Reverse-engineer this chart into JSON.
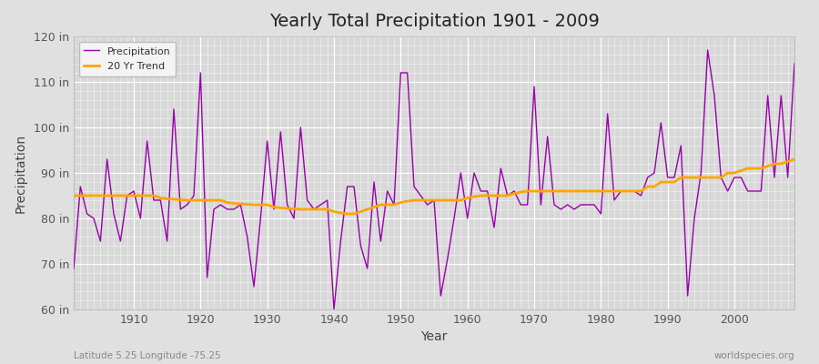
{
  "title": "Yearly Total Precipitation 1901 - 2009",
  "xlabel": "Year",
  "ylabel": "Precipitation",
  "subtitle_left": "Latitude 5.25 Longitude -75.25",
  "subtitle_right": "worldspecies.org",
  "ylim": [
    60,
    120
  ],
  "yticks": [
    60,
    70,
    80,
    90,
    100,
    110,
    120
  ],
  "ytick_labels": [
    "60 in",
    "70 in",
    "80 in",
    "90 in",
    "100 in",
    "110 in",
    "120 in"
  ],
  "xlim": [
    1901,
    2009
  ],
  "xticks": [
    1910,
    1920,
    1930,
    1940,
    1950,
    1960,
    1970,
    1980,
    1990,
    2000
  ],
  "precip_color": "#9900AA",
  "trend_color": "#FFA500",
  "bg_color": "#e0e0e0",
  "plot_bg_color": "#d8d8d8",
  "legend_bg": "#f5f5f5",
  "years": [
    1901,
    1902,
    1903,
    1904,
    1905,
    1906,
    1907,
    1908,
    1909,
    1910,
    1911,
    1912,
    1913,
    1914,
    1915,
    1916,
    1917,
    1918,
    1919,
    1920,
    1921,
    1922,
    1923,
    1924,
    1925,
    1926,
    1927,
    1928,
    1929,
    1930,
    1931,
    1932,
    1933,
    1934,
    1935,
    1936,
    1937,
    1938,
    1939,
    1940,
    1941,
    1942,
    1943,
    1944,
    1945,
    1946,
    1947,
    1948,
    1949,
    1950,
    1951,
    1952,
    1953,
    1954,
    1955,
    1956,
    1957,
    1958,
    1959,
    1960,
    1961,
    1962,
    1963,
    1964,
    1965,
    1966,
    1967,
    1968,
    1969,
    1970,
    1971,
    1972,
    1973,
    1974,
    1975,
    1976,
    1977,
    1978,
    1979,
    1980,
    1981,
    1982,
    1983,
    1984,
    1985,
    1986,
    1987,
    1988,
    1989,
    1990,
    1991,
    1992,
    1993,
    1994,
    1995,
    1996,
    1997,
    1998,
    1999,
    2000,
    2001,
    2002,
    2003,
    2004,
    2005,
    2006,
    2007,
    2008,
    2009
  ],
  "precip": [
    69,
    87,
    81,
    80,
    75,
    93,
    81,
    75,
    85,
    86,
    80,
    97,
    84,
    84,
    75,
    104,
    82,
    83,
    85,
    112,
    67,
    82,
    83,
    82,
    82,
    83,
    76,
    65,
    80,
    97,
    82,
    99,
    83,
    80,
    100,
    84,
    82,
    83,
    84,
    60,
    75,
    87,
    87,
    74,
    69,
    88,
    75,
    86,
    83,
    112,
    112,
    87,
    85,
    83,
    84,
    63,
    71,
    80,
    90,
    80,
    90,
    86,
    86,
    78,
    91,
    85,
    86,
    83,
    83,
    109,
    83,
    98,
    83,
    82,
    83,
    82,
    83,
    83,
    83,
    81,
    103,
    84,
    86,
    86,
    86,
    85,
    89,
    90,
    101,
    89,
    89,
    96,
    63,
    80,
    90,
    117,
    107,
    89,
    86,
    89,
    89,
    86,
    86,
    86,
    107,
    89,
    107,
    89,
    114
  ],
  "trend": [
    85.0,
    85.0,
    85.0,
    85.0,
    85.0,
    85.0,
    85.0,
    85.0,
    85.0,
    85.0,
    85.0,
    85.0,
    85.0,
    84.5,
    84.3,
    84.2,
    84.1,
    84.0,
    84.0,
    84.0,
    84.0,
    84.0,
    84.0,
    83.5,
    83.3,
    83.2,
    83.1,
    83.0,
    83.0,
    83.0,
    82.5,
    82.3,
    82.2,
    82.1,
    82.0,
    82.0,
    82.0,
    82.0,
    82.0,
    81.5,
    81.2,
    81.0,
    81.0,
    81.5,
    82.0,
    82.5,
    83.0,
    83.0,
    83.0,
    83.5,
    83.8,
    84.0,
    84.0,
    84.0,
    84.0,
    84.0,
    84.0,
    84.0,
    84.0,
    84.5,
    84.8,
    85.0,
    85.0,
    85.0,
    85.0,
    85.0,
    85.5,
    85.8,
    86.0,
    86.0,
    86.0,
    86.0,
    86.0,
    86.0,
    86.0,
    86.0,
    86.0,
    86.0,
    86.0,
    86.0,
    86.0,
    86.0,
    86.0,
    86.0,
    86.0,
    86.0,
    87.0,
    87.0,
    88.0,
    88.0,
    88.0,
    89.0,
    89.0,
    89.0,
    89.0,
    89.0,
    89.0,
    89.0,
    90.0,
    90.0,
    90.5,
    91.0,
    91.0,
    91.0,
    91.5,
    92.0,
    92.0,
    92.5,
    93.0
  ]
}
